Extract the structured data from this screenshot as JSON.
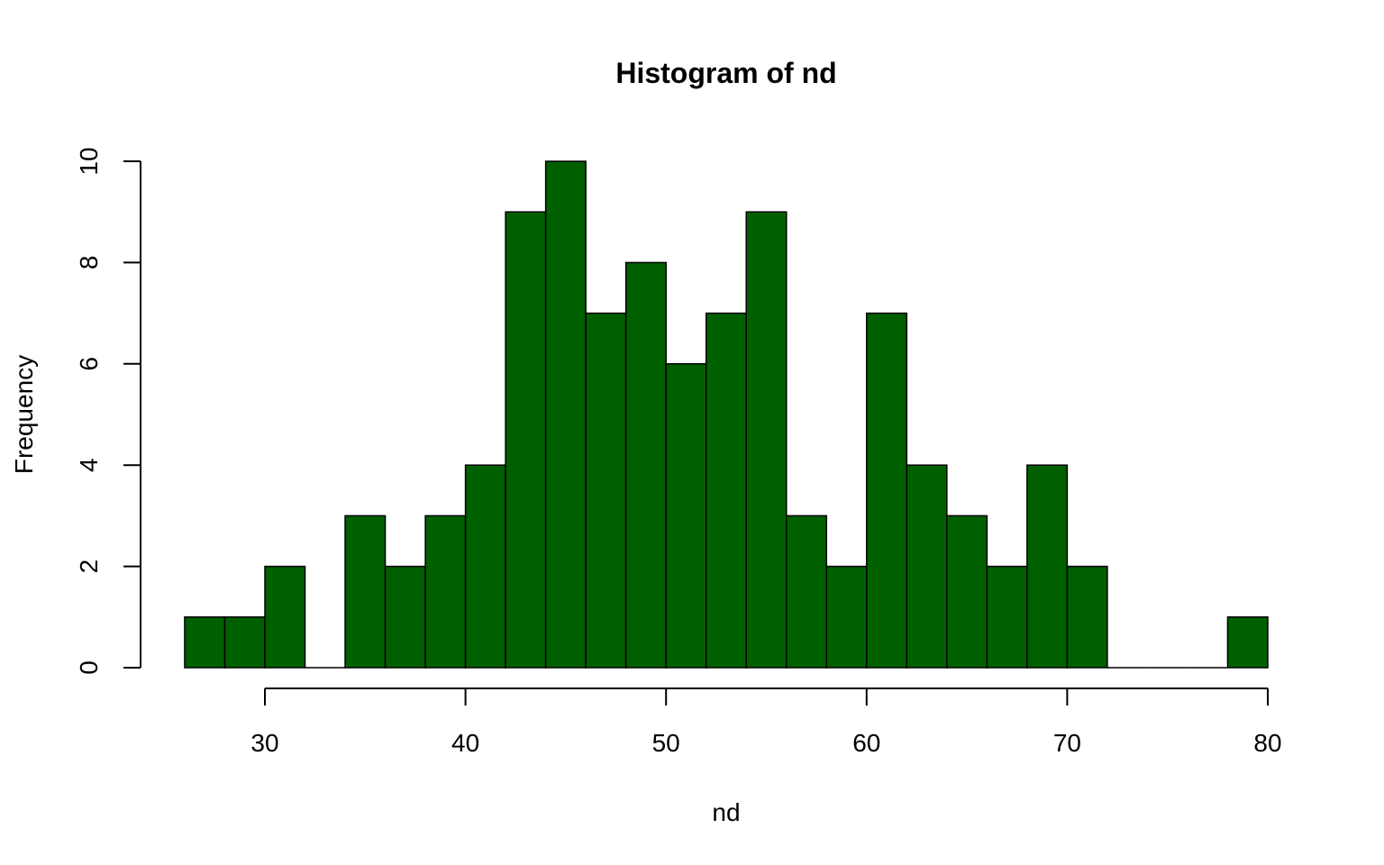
{
  "chart_data": {
    "type": "bar",
    "title": "Histogram of nd",
    "xlabel": "nd",
    "ylabel": "Frequency",
    "bar_color": "#006000",
    "bin_edges": [
      26,
      28,
      30,
      32,
      34,
      36,
      38,
      40,
      42,
      44,
      46,
      48,
      50,
      52,
      54,
      56,
      58,
      60,
      62,
      64,
      66,
      68,
      70,
      72,
      74,
      76,
      78,
      80
    ],
    "values": [
      1,
      1,
      2,
      0,
      3,
      2,
      3,
      4,
      9,
      10,
      7,
      8,
      6,
      7,
      9,
      3,
      2,
      7,
      4,
      3,
      2,
      4,
      2,
      0,
      0,
      0,
      1
    ],
    "xlim": [
      30,
      80
    ],
    "ylim": [
      0,
      10
    ],
    "x_ticks": [
      "30",
      "40",
      "50",
      "60",
      "70",
      "80"
    ],
    "y_ticks": [
      "0",
      "2",
      "4",
      "6",
      "8",
      "10"
    ],
    "grid": false
  }
}
